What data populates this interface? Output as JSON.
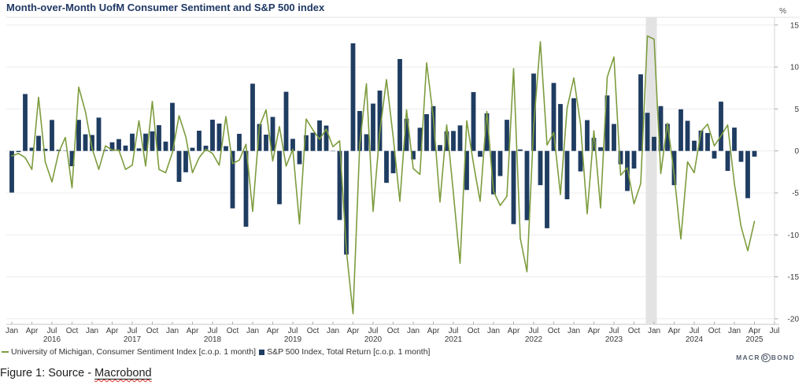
{
  "title": "Month-over-Month UofM Consumer Sentiment and S&P 500 index",
  "chart_data": {
    "type": "combo",
    "frequency": "monthly",
    "x_start": "Jan 2016",
    "x_end": "Apr 2025",
    "grid": true,
    "legend_position": "bottom-left",
    "x_axis": {
      "tick_months": [
        "Jan",
        "Apr",
        "Jul",
        "Oct"
      ],
      "years": [
        "2016",
        "2017",
        "2018",
        "2019",
        "2020",
        "2021",
        "2022",
        "2023",
        "2024",
        "2025"
      ],
      "last_tick": "Jul 2025"
    },
    "y_axis": {
      "unit": "%",
      "ticks": [
        15,
        10,
        5,
        0,
        -5,
        -10,
        -15,
        -20
      ],
      "min": -20,
      "max": 15
    },
    "highlight_band": {
      "month": "Dec 2023",
      "month_index": 95,
      "color": "#e3e3e3"
    },
    "series": [
      {
        "name": "University of Michigan, Consumer Sentiment Index [c.o.p. 1 month]",
        "type": "line",
        "color": "#7d9c3e",
        "values": [
          -0.6,
          -0.3,
          -0.8,
          -2.2,
          6.4,
          -1.3,
          -3.7,
          -0.2,
          1.6,
          -4.4,
          7.6,
          4.7,
          0.3,
          -2.2,
          0.6,
          0.1,
          0.1,
          -2.2,
          -1.7,
          3.6,
          -1.8,
          5.9,
          -2.2,
          -2.6,
          -0.2,
          4.2,
          1.7,
          -2.6,
          -0.8,
          0.2,
          -0.3,
          -1.7,
          4.1,
          -1.5,
          -1.1,
          0.8,
          -7.2,
          2.9,
          4.9,
          -1.2,
          2.9,
          -1.8,
          0.2,
          -8.7,
          3.8,
          2.5,
          1.4,
          2.6,
          0.5,
          1.2,
          -11.8,
          -19.4,
          0.7,
          8.0,
          -7.2,
          2.2,
          8.5,
          1.7,
          -6.0,
          4.9,
          -2.1,
          -2.8,
          10.5,
          4.0,
          -6.1,
          3.1,
          -5.0,
          -13.4,
          3.6,
          -1.5,
          -6.0,
          4.7,
          -4.8,
          -6.5,
          -5.4,
          9.8,
          -10.4,
          -14.4,
          3.0,
          13.0,
          0.7,
          2.2,
          -5.2,
          5.1,
          8.7,
          3.2,
          -7.5,
          2.4,
          -6.8,
          8.8,
          11.2,
          -2.9,
          -2.0,
          -6.3,
          -3.9,
          13.7,
          13.3,
          -2.7,
          3.3,
          -2.8,
          -10.5,
          -1.3,
          -2.6,
          2.3,
          3.2,
          0.6,
          1.8,
          3.1,
          -3.9,
          -9.0,
          -11.9,
          -8.4
        ]
      },
      {
        "name": "S&P 500 Index, Total Return [c.o.p. 1 month]",
        "type": "bar",
        "color": "#1f3c61",
        "values": [
          -4.96,
          -0.13,
          6.78,
          0.39,
          1.8,
          0.26,
          3.69,
          0.14,
          0.02,
          -1.82,
          3.7,
          1.98,
          1.9,
          3.97,
          0.12,
          1.03,
          1.41,
          0.64,
          2.06,
          0.31,
          2.06,
          2.33,
          3.07,
          1.11,
          5.73,
          -3.69,
          -2.54,
          0.38,
          2.41,
          0.62,
          3.72,
          3.26,
          0.57,
          -6.84,
          2.04,
          -9.03,
          8.01,
          3.21,
          1.94,
          4.05,
          -6.35,
          7.05,
          1.44,
          -1.58,
          1.87,
          2.17,
          3.63,
          3.02,
          -0.04,
          -8.23,
          -12.35,
          12.82,
          4.76,
          1.99,
          5.64,
          7.19,
          -3.8,
          -2.66,
          10.95,
          3.84,
          -1.01,
          2.76,
          4.38,
          5.34,
          0.7,
          2.33,
          2.38,
          3.04,
          -4.65,
          7.01,
          -0.69,
          4.48,
          -5.17,
          -2.99,
          3.71,
          -8.72,
          0.18,
          -8.25,
          9.22,
          -4.08,
          -9.21,
          8.1,
          5.59,
          -5.76,
          6.28,
          -2.44,
          3.67,
          1.56,
          0.43,
          6.61,
          3.21,
          -1.59,
          -4.77,
          -2.1,
          9.13,
          4.54,
          1.68,
          5.34,
          3.22,
          -4.08,
          4.96,
          3.59,
          1.22,
          2.43,
          2.14,
          -0.91,
          5.87,
          -2.38,
          2.78,
          -1.3,
          -5.63,
          -0.68
        ]
      }
    ]
  },
  "legend": [
    {
      "label": "University of Michigan, Consumer Sentiment Index [c.o.p. 1 month]",
      "marker": "line",
      "color": "#7d9c3e"
    },
    {
      "label": "S&P 500 Index, Total Return [c.o.p. 1 month]",
      "marker": "square",
      "color": "#1f3c61"
    }
  ],
  "footer": {
    "prefix": "Figure 1: Source - ",
    "link": "Macrobond"
  },
  "branding": {
    "pre": "MACR",
    "o": "O",
    "post": "BOND"
  }
}
